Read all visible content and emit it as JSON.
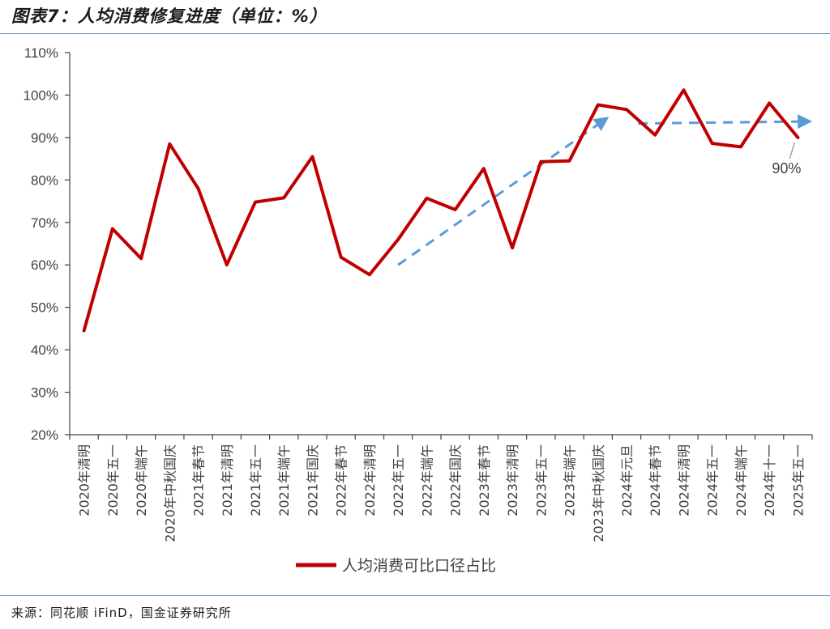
{
  "header": {
    "title": "图表7：人均消费修复进度（单位：%）"
  },
  "footer": {
    "source": "来源：同花顺 iFinD，国金证券研究所"
  },
  "chart_data": {
    "type": "line",
    "title": "图表7：人均消费修复进度（单位：%）",
    "xlabel": "",
    "ylabel": "",
    "ylim": [
      20,
      110
    ],
    "yticks": [
      20,
      30,
      40,
      50,
      60,
      70,
      80,
      90,
      100,
      110
    ],
    "ytick_suffix": "%",
    "grid": false,
    "legend_position": "bottom",
    "categories": [
      "2020年清明",
      "2020年五一",
      "2020年端午",
      "2020年中秋国庆",
      "2021年春节",
      "2021年清明",
      "2021年五一",
      "2021年端午",
      "2021年国庆",
      "2022年春节",
      "2022年清明",
      "2022年五一",
      "2022年端午",
      "2022年国庆",
      "2023年春节",
      "2023年清明",
      "2023年五一",
      "2023年端午",
      "2023年中秋国庆",
      "2024年元旦",
      "2024年春节",
      "2024年清明",
      "2024年五一",
      "2024年端午",
      "2024年十一",
      "2025年五一"
    ],
    "series": [
      {
        "name": "人均消费可比口径占比",
        "color": "#c00000",
        "values": [
          44.5,
          68.5,
          61.5,
          88.5,
          78,
          60,
          74.8,
          75.8,
          85.5,
          61.8,
          57.7,
          66,
          75.7,
          73,
          82.7,
          64,
          84.3,
          84.5,
          97.7,
          96.6,
          90.6,
          101.2,
          88.6,
          87.8,
          98.1,
          90
        ]
      }
    ],
    "trend_arrows": [
      {
        "from": [
          11,
          60
        ],
        "to": [
          18.3,
          94.5
        ],
        "color": "#5b9bd5"
      },
      {
        "from": [
          19.4,
          93.3
        ],
        "to": [
          25.4,
          93.8
        ],
        "color": "#5b9bd5"
      }
    ],
    "annotations": [
      {
        "text": "90%",
        "at": [
          25,
          90
        ]
      }
    ]
  }
}
